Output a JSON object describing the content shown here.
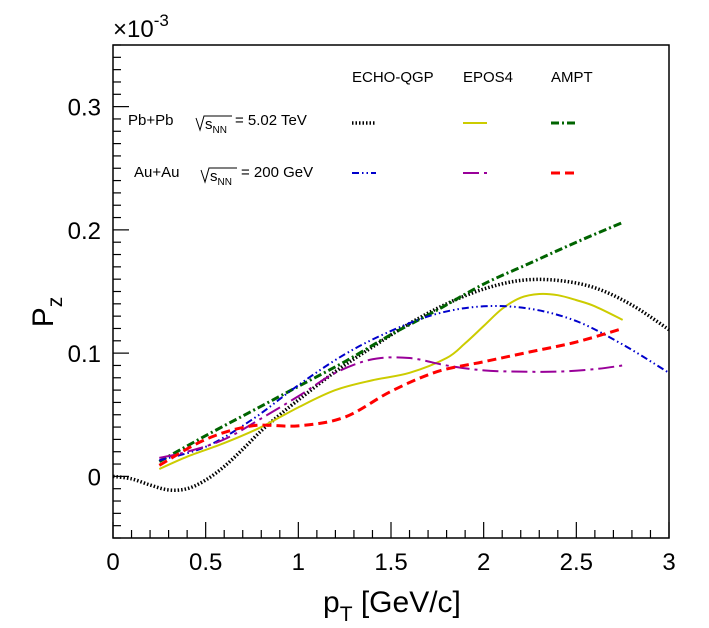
{
  "chart_data": {
    "type": "line",
    "title": "",
    "exponent_label": "×10",
    "exponent_power": "-3",
    "xlabel": {
      "main": "p",
      "sub": "T",
      "rest": " [GeV/c]"
    },
    "ylabel": {
      "main": "P",
      "sub": "z"
    },
    "xlim": [
      0,
      3
    ],
    "ylim": [
      -0.05,
      0.35
    ],
    "x_ticks": [
      {
        "value": 0,
        "label": "0"
      },
      {
        "value": 0.5,
        "label": "0.5"
      },
      {
        "value": 1,
        "label": "1"
      },
      {
        "value": 1.5,
        "label": "1.5"
      },
      {
        "value": 2,
        "label": "2"
      },
      {
        "value": 2.5,
        "label": "2.5"
      },
      {
        "value": 3,
        "label": "3"
      }
    ],
    "y_ticks": [
      {
        "value": 0,
        "label": "0"
      },
      {
        "value": 0.1,
        "label": "0.1"
      },
      {
        "value": 0.2,
        "label": "0.2"
      },
      {
        "value": 0.3,
        "label": "0.3"
      }
    ],
    "legend": {
      "columns": [
        "ECHO-QGP",
        "EPOS4",
        "AMPT"
      ],
      "rows": [
        {
          "system": "Pb+Pb",
          "energy_value": "= 5.02 TeV"
        },
        {
          "system": "Au+Au",
          "energy_value": "= 200 GeV"
        }
      ],
      "energy_symbol": "s",
      "energy_sub": "NN"
    },
    "series": [
      {
        "name": "ECHO-QGP Pb+Pb 5.02 TeV",
        "color": "#000000",
        "dash": "dotted",
        "x": [
          0.0,
          0.1,
          0.2,
          0.3,
          0.4,
          0.5,
          0.6,
          0.7,
          0.8,
          0.9,
          1.0,
          1.2,
          1.4,
          1.6,
          1.8,
          2.0,
          2.2,
          2.4,
          2.6,
          2.8,
          3.0
        ],
        "y": [
          0.0,
          -0.002,
          -0.007,
          -0.011,
          -0.01,
          -0.003,
          0.008,
          0.022,
          0.037,
          0.05,
          0.062,
          0.085,
          0.105,
          0.124,
          0.14,
          0.152,
          0.159,
          0.159,
          0.153,
          0.139,
          0.119
        ]
      },
      {
        "name": "EPOS4 Pb+Pb 5.02 TeV",
        "color": "#cccc00",
        "dash": "solid",
        "x": [
          0.25,
          0.4,
          0.6,
          0.8,
          1.0,
          1.2,
          1.4,
          1.6,
          1.8,
          1.9,
          2.0,
          2.1,
          2.2,
          2.3,
          2.4,
          2.5,
          2.6,
          2.75
        ],
        "y": [
          0.006,
          0.016,
          0.027,
          0.04,
          0.056,
          0.07,
          0.078,
          0.084,
          0.096,
          0.108,
          0.122,
          0.136,
          0.145,
          0.148,
          0.147,
          0.143,
          0.138,
          0.127
        ]
      },
      {
        "name": "AMPT Pb+Pb 5.02 TeV",
        "color": "#006400",
        "dash": "dash-dot",
        "x": [
          0.25,
          0.5,
          0.75,
          1.0,
          1.25,
          1.5,
          1.75,
          2.0,
          2.25,
          2.5,
          2.75
        ],
        "y": [
          0.012,
          0.033,
          0.053,
          0.073,
          0.093,
          0.115,
          0.135,
          0.156,
          0.173,
          0.19,
          0.206
        ]
      },
      {
        "name": "ECHO-QGP Au+Au 200 GeV",
        "color": "#0000cc",
        "dash": "dash-dot-dot",
        "x": [
          0.25,
          0.5,
          0.75,
          1.0,
          1.25,
          1.5,
          1.75,
          2.0,
          2.25,
          2.5,
          2.75,
          3.0
        ],
        "y": [
          0.013,
          0.024,
          0.046,
          0.074,
          0.099,
          0.118,
          0.132,
          0.138,
          0.136,
          0.126,
          0.107,
          0.084
        ]
      },
      {
        "name": "EPOS4 Au+Au 200 GeV",
        "color": "#990099",
        "dash": "long-dash-dot",
        "x": [
          0.25,
          0.4,
          0.6,
          0.8,
          1.0,
          1.2,
          1.4,
          1.6,
          1.8,
          2.0,
          2.2,
          2.4,
          2.6,
          2.75
        ],
        "y": [
          0.015,
          0.02,
          0.03,
          0.047,
          0.065,
          0.084,
          0.095,
          0.096,
          0.09,
          0.086,
          0.085,
          0.085,
          0.087,
          0.09
        ]
      },
      {
        "name": "AMPT Au+Au 200 GeV",
        "color": "#ff0000",
        "dash": "dashed",
        "x": [
          0.25,
          0.5,
          0.75,
          1.0,
          1.25,
          1.5,
          1.75,
          2.0,
          2.25,
          2.5,
          2.75
        ],
        "y": [
          0.009,
          0.03,
          0.041,
          0.041,
          0.048,
          0.069,
          0.085,
          0.093,
          0.101,
          0.109,
          0.12
        ]
      }
    ]
  }
}
